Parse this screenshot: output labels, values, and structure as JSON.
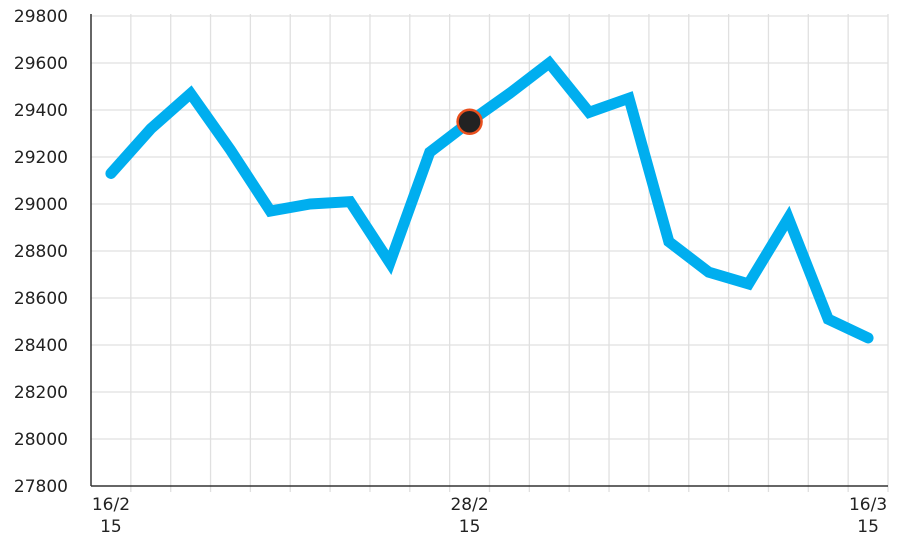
{
  "chart_data": {
    "type": "line",
    "title": "",
    "xlabel": "",
    "ylabel": "",
    "ylim": [
      27800,
      29800
    ],
    "yticks": [
      27800,
      28000,
      28200,
      28400,
      28600,
      28800,
      29000,
      29200,
      29400,
      29600,
      29800
    ],
    "grid": true,
    "x_tick_labels": [
      {
        "index": 0,
        "line1": "16/2",
        "line2": "15"
      },
      {
        "index": 9,
        "line1": "28/2",
        "line2": "15"
      },
      {
        "index": 19,
        "line1": "16/3",
        "line2": "15"
      }
    ],
    "series": [
      {
        "color": "#00AEEF",
        "values": [
          29130,
          29320,
          29470,
          29230,
          28970,
          29000,
          29010,
          28750,
          29220,
          29350,
          29470,
          29600,
          29390,
          29450,
          28840,
          28710,
          28660,
          28940,
          28510,
          28430
        ]
      }
    ],
    "highlight": {
      "index": 9,
      "value": 29350,
      "fill": "#222222",
      "stroke": "#E8501E"
    },
    "colors": {
      "grid": "#e0e0e0",
      "axis": "#333333"
    }
  }
}
